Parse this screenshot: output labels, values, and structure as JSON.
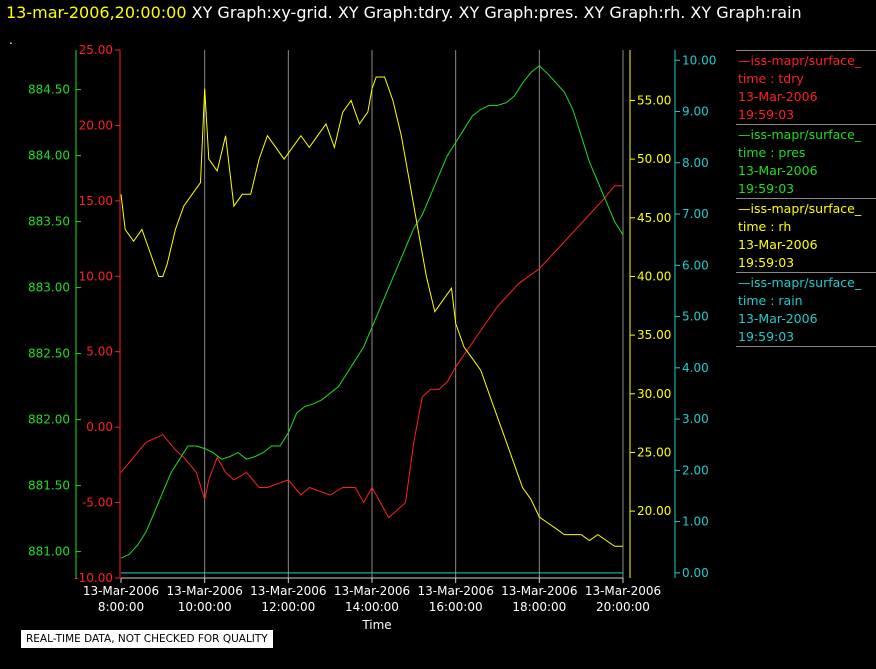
{
  "header": {
    "timestamp": "13-mar-2006,20:00:00",
    "titles": "XY Graph:xy-grid.  XY Graph:tdry.  XY Graph:pres.  XY Graph:rh.  XY Graph:rain",
    "mark": "."
  },
  "footer": {
    "disclaimer": "REAL-TIME DATA, NOT CHECKED FOR QUALITY"
  },
  "legend": [
    {
      "source": "—iss-mapr/surface_",
      "var": "time : tdry",
      "date": "13-Mar-2006",
      "time": "19:59:03",
      "color": "#ff2020"
    },
    {
      "source": "—iss-mapr/surface_",
      "var": "time : pres",
      "date": "13-Mar-2006",
      "time": "19:59:03",
      "color": "#22dd22"
    },
    {
      "source": "—iss-mapr/surface_",
      "var": "time : rh",
      "date": "13-Mar-2006",
      "time": "19:59:03",
      "color": "#ffff00"
    },
    {
      "source": "—iss-mapr/surface_",
      "var": "time : rain",
      "date": "13-Mar-2006",
      "time": "19:59:03",
      "color": "#20cccc"
    }
  ],
  "chart_data": {
    "type": "line",
    "xlabel": "Time",
    "x_ticks": [
      [
        "13-Mar-2006",
        "8:00:00"
      ],
      [
        "13-Mar-2006",
        "10:00:00"
      ],
      [
        "13-Mar-2006",
        "12:00:00"
      ],
      [
        "13-Mar-2006",
        "14:00:00"
      ],
      [
        "13-Mar-2006",
        "16:00:00"
      ],
      [
        "13-Mar-2006",
        "18:00:00"
      ],
      [
        "13-Mar-2006",
        "20:00:00"
      ]
    ],
    "x_hours": [
      8,
      20
    ],
    "grid": "vertical",
    "axes": {
      "tdry": {
        "color": "#ff2020",
        "range": [
          -10,
          25
        ],
        "ticks": [
          "-10.00",
          "-5.00",
          "0.00",
          "5.00",
          "10.00",
          "15.00",
          "20.00",
          "25.00"
        ]
      },
      "pres": {
        "color": "#22dd22",
        "range": [
          880.8,
          884.8
        ],
        "ticks": [
          "881.00",
          "881.50",
          "882.00",
          "882.50",
          "883.00",
          "883.50",
          "884.00",
          "884.50"
        ]
      },
      "rh": {
        "color": "#ffff00",
        "range": [
          14.3,
          59.3
        ],
        "ticks": [
          "20.00",
          "25.00",
          "30.00",
          "35.00",
          "40.00",
          "45.00",
          "50.00",
          "55.00"
        ]
      },
      "rain": {
        "color": "#20cccc",
        "range": [
          -0.1,
          10.2
        ],
        "ticks": [
          "0.00",
          "1.00",
          "2.00",
          "3.00",
          "4.00",
          "5.00",
          "6.00",
          "7.00",
          "8.00",
          "9.00",
          "10.00"
        ]
      }
    },
    "series": [
      {
        "name": "tdry",
        "color": "#ff2020",
        "x": [
          8,
          8.3,
          8.6,
          9,
          9.3,
          9.5,
          9.8,
          10,
          10.1,
          10.3,
          10.5,
          10.7,
          11,
          11.3,
          11.5,
          12,
          12.3,
          12.5,
          12.7,
          13,
          13.3,
          13.6,
          13.8,
          14,
          14.2,
          14.4,
          14.6,
          14.8,
          15,
          15.2,
          15.4,
          15.6,
          15.8,
          16,
          16.5,
          17,
          17.5,
          18,
          18.5,
          19,
          19.5,
          19.8,
          20
        ],
        "y": [
          -3,
          -2,
          -1,
          -0.5,
          -1.5,
          -2,
          -3,
          -4.8,
          -3.5,
          -2,
          -3,
          -3.5,
          -3,
          -4,
          -4,
          -3.5,
          -4.5,
          -4,
          -4.2,
          -4.5,
          -4,
          -4,
          -5,
          -4,
          -5,
          -6,
          -5.5,
          -5,
          -1,
          2,
          2.5,
          2.5,
          3,
          4,
          6,
          8,
          9.5,
          10.5,
          12,
          13.5,
          15,
          16,
          16
        ]
      },
      {
        "name": "pres",
        "color": "#22dd22",
        "x": [
          8,
          8.2,
          8.4,
          8.6,
          8.8,
          9,
          9.2,
          9.4,
          9.6,
          9.8,
          10,
          10.2,
          10.4,
          10.6,
          10.8,
          11,
          11.2,
          11.4,
          11.6,
          11.8,
          12,
          12.2,
          12.4,
          12.6,
          12.8,
          13,
          13.2,
          13.4,
          13.6,
          13.8,
          14,
          14.2,
          14.4,
          14.6,
          14.8,
          15,
          15.2,
          15.4,
          15.6,
          15.8,
          16,
          16.2,
          16.4,
          16.6,
          16.8,
          17,
          17.2,
          17.4,
          17.6,
          17.8,
          18,
          18.2,
          18.4,
          18.6,
          18.8,
          19,
          19.2,
          19.4,
          19.6,
          19.8,
          20
        ],
        "y": [
          880.95,
          880.98,
          881.05,
          881.15,
          881.3,
          881.45,
          881.6,
          881.7,
          881.8,
          881.8,
          881.78,
          881.75,
          881.7,
          881.72,
          881.75,
          881.7,
          881.72,
          881.75,
          881.8,
          881.8,
          881.9,
          882.05,
          882.1,
          882.12,
          882.15,
          882.2,
          882.25,
          882.35,
          882.45,
          882.55,
          882.7,
          882.85,
          883,
          883.15,
          883.3,
          883.45,
          883.55,
          883.7,
          883.85,
          884,
          884.1,
          884.2,
          884.3,
          884.35,
          884.38,
          884.38,
          884.4,
          884.45,
          884.55,
          884.63,
          884.68,
          884.62,
          884.55,
          884.48,
          884.35,
          884.15,
          883.95,
          883.8,
          883.65,
          883.5,
          883.4
        ]
      },
      {
        "name": "rh",
        "color": "#ffff00",
        "x": [
          8,
          8.1,
          8.3,
          8.5,
          8.7,
          8.9,
          9,
          9.1,
          9.3,
          9.5,
          9.7,
          9.9,
          10,
          10.1,
          10.3,
          10.5,
          10.7,
          10.9,
          11.1,
          11.3,
          11.5,
          11.7,
          11.9,
          12.1,
          12.3,
          12.5,
          12.7,
          12.9,
          13.1,
          13.3,
          13.5,
          13.7,
          13.9,
          14,
          14.1,
          14.3,
          14.5,
          14.7,
          14.9,
          15.1,
          15.3,
          15.5,
          15.7,
          15.9,
          16,
          16.2,
          16.4,
          16.6,
          16.8,
          17,
          17.2,
          17.4,
          17.6,
          17.8,
          18,
          18.2,
          18.4,
          18.6,
          18.8,
          19,
          19.2,
          19.4,
          19.6,
          19.8,
          20
        ],
        "y": [
          47,
          44,
          43,
          44,
          42,
          40,
          40,
          41,
          44,
          46,
          47,
          48,
          56,
          50,
          49,
          52,
          46,
          47,
          47,
          50,
          52,
          51,
          50,
          51,
          52,
          51,
          52,
          53,
          51,
          54,
          55,
          53,
          54,
          56,
          57,
          57,
          55,
          52,
          48,
          44,
          40,
          37,
          38,
          39,
          36,
          34,
          33,
          32,
          30,
          28,
          26,
          24,
          22,
          21,
          19.5,
          19,
          18.5,
          18,
          18,
          18,
          17.5,
          18,
          17.5,
          17,
          17
        ]
      },
      {
        "name": "rain",
        "color": "#20cccc",
        "x": [
          8,
          20
        ],
        "y": [
          0,
          0
        ]
      }
    ]
  }
}
